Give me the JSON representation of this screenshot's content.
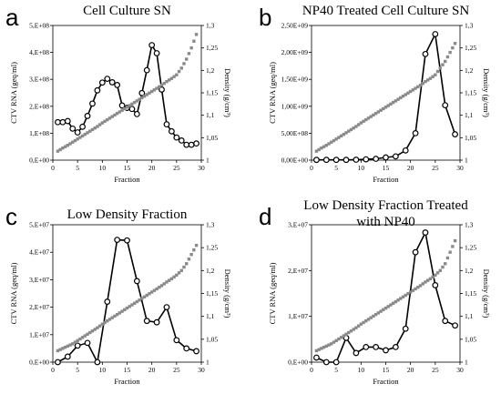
{
  "chart_data": [
    {
      "type": "line",
      "panel": "a",
      "title": [
        "Cell Culture SN"
      ],
      "xlabel": "Fraction",
      "ylabel": "CTV RNA (geq/ml)",
      "y2label": "Density (g/cm³)",
      "xlim": [
        0,
        30
      ],
      "ylim": [
        0,
        500000000
      ],
      "y2lim": [
        1,
        1.3
      ],
      "xticks": [
        "0",
        "5",
        "10",
        "15",
        "20",
        "25",
        "30"
      ],
      "yticks": [
        "0,E+00",
        "1,E+08",
        "2,E+08",
        "3,E+08",
        "4,E+08",
        "5,E+08"
      ],
      "y2ticks": [
        "1",
        "1,05",
        "1,1",
        "1,15",
        "1,2",
        "1,25",
        "1,3"
      ],
      "series": [
        {
          "name": "CTV RNA",
          "x": [
            1,
            2,
            3,
            4,
            5,
            6,
            7,
            8,
            9,
            10,
            11,
            12,
            13,
            14,
            15,
            16,
            17,
            18,
            19,
            20,
            21,
            22,
            23,
            24,
            25,
            26,
            27,
            28,
            29
          ],
          "y": [
            141000000,
            141000000,
            145000000,
            117000000,
            103000000,
            124000000,
            164000000,
            210000000,
            259000000,
            288000000,
            302000000,
            289000000,
            279000000,
            203000000,
            194000000,
            190000000,
            171000000,
            249000000,
            334000000,
            427000000,
            397000000,
            262000000,
            133000000,
            107000000,
            84000000,
            73000000,
            57000000,
            57000000,
            62000000
          ]
        },
        {
          "name": "Density",
          "axis": "right",
          "x": [
            1,
            2,
            3,
            4,
            5,
            6,
            7,
            8,
            9,
            10,
            11,
            12,
            13,
            14,
            15,
            16,
            17,
            18,
            19,
            20,
            21,
            22,
            23,
            24,
            25,
            26,
            27,
            28,
            29
          ],
          "y": [
            1.02,
            1.027,
            1.033,
            1.04,
            1.047,
            1.054,
            1.061,
            1.068,
            1.075,
            1.083,
            1.09,
            1.097,
            1.104,
            1.111,
            1.118,
            1.125,
            1.132,
            1.139,
            1.146,
            1.153,
            1.16,
            1.167,
            1.175,
            1.182,
            1.19,
            1.205,
            1.225,
            1.25,
            1.28
          ]
        }
      ]
    },
    {
      "type": "line",
      "panel": "b",
      "title": [
        "NP40 Treated Cell Culture SN"
      ],
      "xlabel": "Fraction",
      "ylabel": "CTV RNA (geq/ml)",
      "y2label": "Density (g/cm³)",
      "xlim": [
        0,
        30
      ],
      "ylim": [
        0,
        2500000000
      ],
      "y2lim": [
        1,
        1.3
      ],
      "xticks": [
        "0",
        "5",
        "10",
        "15",
        "20",
        "25",
        "30"
      ],
      "yticks": [
        "0,00E+00",
        "5,00E+08",
        "1,00E+09",
        "1,50E+09",
        "2,00E+09",
        "2,50E+09"
      ],
      "y2ticks": [
        "1",
        "1,05",
        "1,1",
        "1,15",
        "1,2",
        "1,25",
        "1,3"
      ],
      "series": [
        {
          "name": "CTV RNA",
          "x": [
            1,
            3,
            5,
            7,
            9,
            11,
            13,
            15,
            17,
            19,
            21,
            23,
            25,
            27,
            29
          ],
          "y": [
            5000000,
            5000000,
            5000000,
            5000000,
            8000000,
            15000000,
            25000000,
            50000000,
            70000000,
            180000000,
            500000000,
            1970000000,
            2340000000,
            1020000000,
            480000000
          ]
        },
        {
          "name": "Density",
          "axis": "right",
          "x": [
            1,
            2,
            3,
            4,
            5,
            6,
            7,
            8,
            9,
            10,
            11,
            12,
            13,
            14,
            15,
            16,
            17,
            18,
            19,
            20,
            21,
            22,
            23,
            24,
            25,
            26,
            27,
            28,
            29
          ],
          "y": [
            1.02,
            1.027,
            1.033,
            1.04,
            1.047,
            1.054,
            1.061,
            1.068,
            1.075,
            1.083,
            1.09,
            1.097,
            1.104,
            1.111,
            1.118,
            1.125,
            1.132,
            1.139,
            1.146,
            1.153,
            1.16,
            1.167,
            1.175,
            1.182,
            1.19,
            1.205,
            1.22,
            1.24,
            1.26
          ]
        }
      ]
    },
    {
      "type": "line",
      "panel": "c",
      "title": [
        "Low Density Fraction"
      ],
      "xlabel": "Fraction",
      "ylabel": "CTV RNA (geq/ml)",
      "y2label": "Density (g/cm³)",
      "xlim": [
        0,
        30
      ],
      "ylim": [
        0,
        50000000
      ],
      "y2lim": [
        1,
        1.3
      ],
      "xticks": [
        "0",
        "5",
        "10",
        "15",
        "20",
        "25",
        "30"
      ],
      "yticks": [
        "0,E+00",
        "1,E+07",
        "2,E+07",
        "3,E+07",
        "4,E+07",
        "5,E+07"
      ],
      "y2ticks": [
        "1",
        "1,05",
        "1,1",
        "1,15",
        "1,2",
        "1,25",
        "1,3"
      ],
      "series": [
        {
          "name": "CTV RNA",
          "x": [
            1,
            3,
            5,
            7,
            9,
            11,
            13,
            15,
            17,
            19,
            21,
            23,
            25,
            27,
            29
          ],
          "y": [
            0,
            2000000,
            6000000,
            7000000,
            0,
            22000000,
            44500000,
            44300000,
            29500000,
            15000000,
            14500000,
            20000000,
            8000000,
            5000000,
            4000000
          ]
        },
        {
          "name": "Density",
          "axis": "right",
          "x": [
            1,
            2,
            3,
            4,
            5,
            6,
            7,
            8,
            9,
            10,
            11,
            12,
            13,
            14,
            15,
            16,
            17,
            18,
            19,
            20,
            21,
            22,
            23,
            24,
            25,
            26,
            27,
            28,
            29
          ],
          "y": [
            1.025,
            1.03,
            1.035,
            1.04,
            1.047,
            1.054,
            1.061,
            1.068,
            1.075,
            1.083,
            1.09,
            1.097,
            1.104,
            1.111,
            1.118,
            1.125,
            1.132,
            1.139,
            1.146,
            1.153,
            1.16,
            1.167,
            1.175,
            1.182,
            1.19,
            1.2,
            1.215,
            1.235,
            1.255
          ]
        }
      ]
    },
    {
      "type": "line",
      "panel": "d",
      "title": [
        "Low Density Fraction Treated",
        "with NP40"
      ],
      "xlabel": "Fraction",
      "ylabel": "CTV RNA (geq/ml)",
      "y2label": "Density (g/cm³)",
      "xlim": [
        0,
        30
      ],
      "ylim": [
        0,
        30000000
      ],
      "y2lim": [
        1,
        1.3
      ],
      "xticks": [
        "0",
        "5",
        "10",
        "15",
        "20",
        "25",
        "30"
      ],
      "yticks": [
        "0,E+00",
        "1,E+07",
        "2,E+07",
        "3,E+07"
      ],
      "y2ticks": [
        "1",
        "1,05",
        "1,1",
        "1,15",
        "1,2",
        "1,25",
        "1,3"
      ],
      "series": [
        {
          "name": "CTV RNA",
          "x": [
            1,
            3,
            5,
            7,
            9,
            11,
            13,
            15,
            17,
            19,
            21,
            23,
            25,
            27,
            29
          ],
          "y": [
            1000000,
            0,
            0,
            5300000,
            2000000,
            3300000,
            3300000,
            2600000,
            3300000,
            7300000,
            24000000,
            28300000,
            16800000,
            9000000,
            8000000
          ]
        },
        {
          "name": "Density",
          "axis": "right",
          "x": [
            1,
            2,
            3,
            4,
            5,
            6,
            7,
            8,
            9,
            10,
            11,
            12,
            13,
            14,
            15,
            16,
            17,
            18,
            19,
            20,
            21,
            22,
            23,
            24,
            25,
            26,
            27,
            28,
            29
          ],
          "y": [
            1.025,
            1.03,
            1.035,
            1.04,
            1.047,
            1.054,
            1.061,
            1.068,
            1.075,
            1.083,
            1.09,
            1.097,
            1.104,
            1.111,
            1.118,
            1.125,
            1.132,
            1.139,
            1.146,
            1.153,
            1.16,
            1.167,
            1.175,
            1.182,
            1.19,
            1.2,
            1.215,
            1.24,
            1.265
          ]
        }
      ]
    }
  ]
}
